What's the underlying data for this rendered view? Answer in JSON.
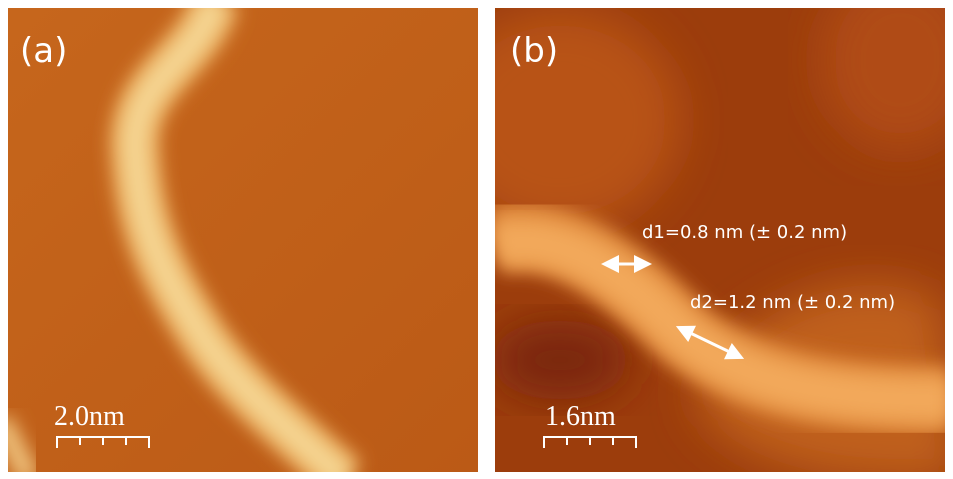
{
  "panels": [
    {
      "label": "(a)",
      "scale_bar": "2.0nm"
    },
    {
      "label": "(b)",
      "scale_bar": "1.6nm",
      "annotations": [
        "d1=0.8 nm (± 0.2 nm)",
        "d2=1.2 nm (± 0.2 nm)"
      ]
    }
  ]
}
